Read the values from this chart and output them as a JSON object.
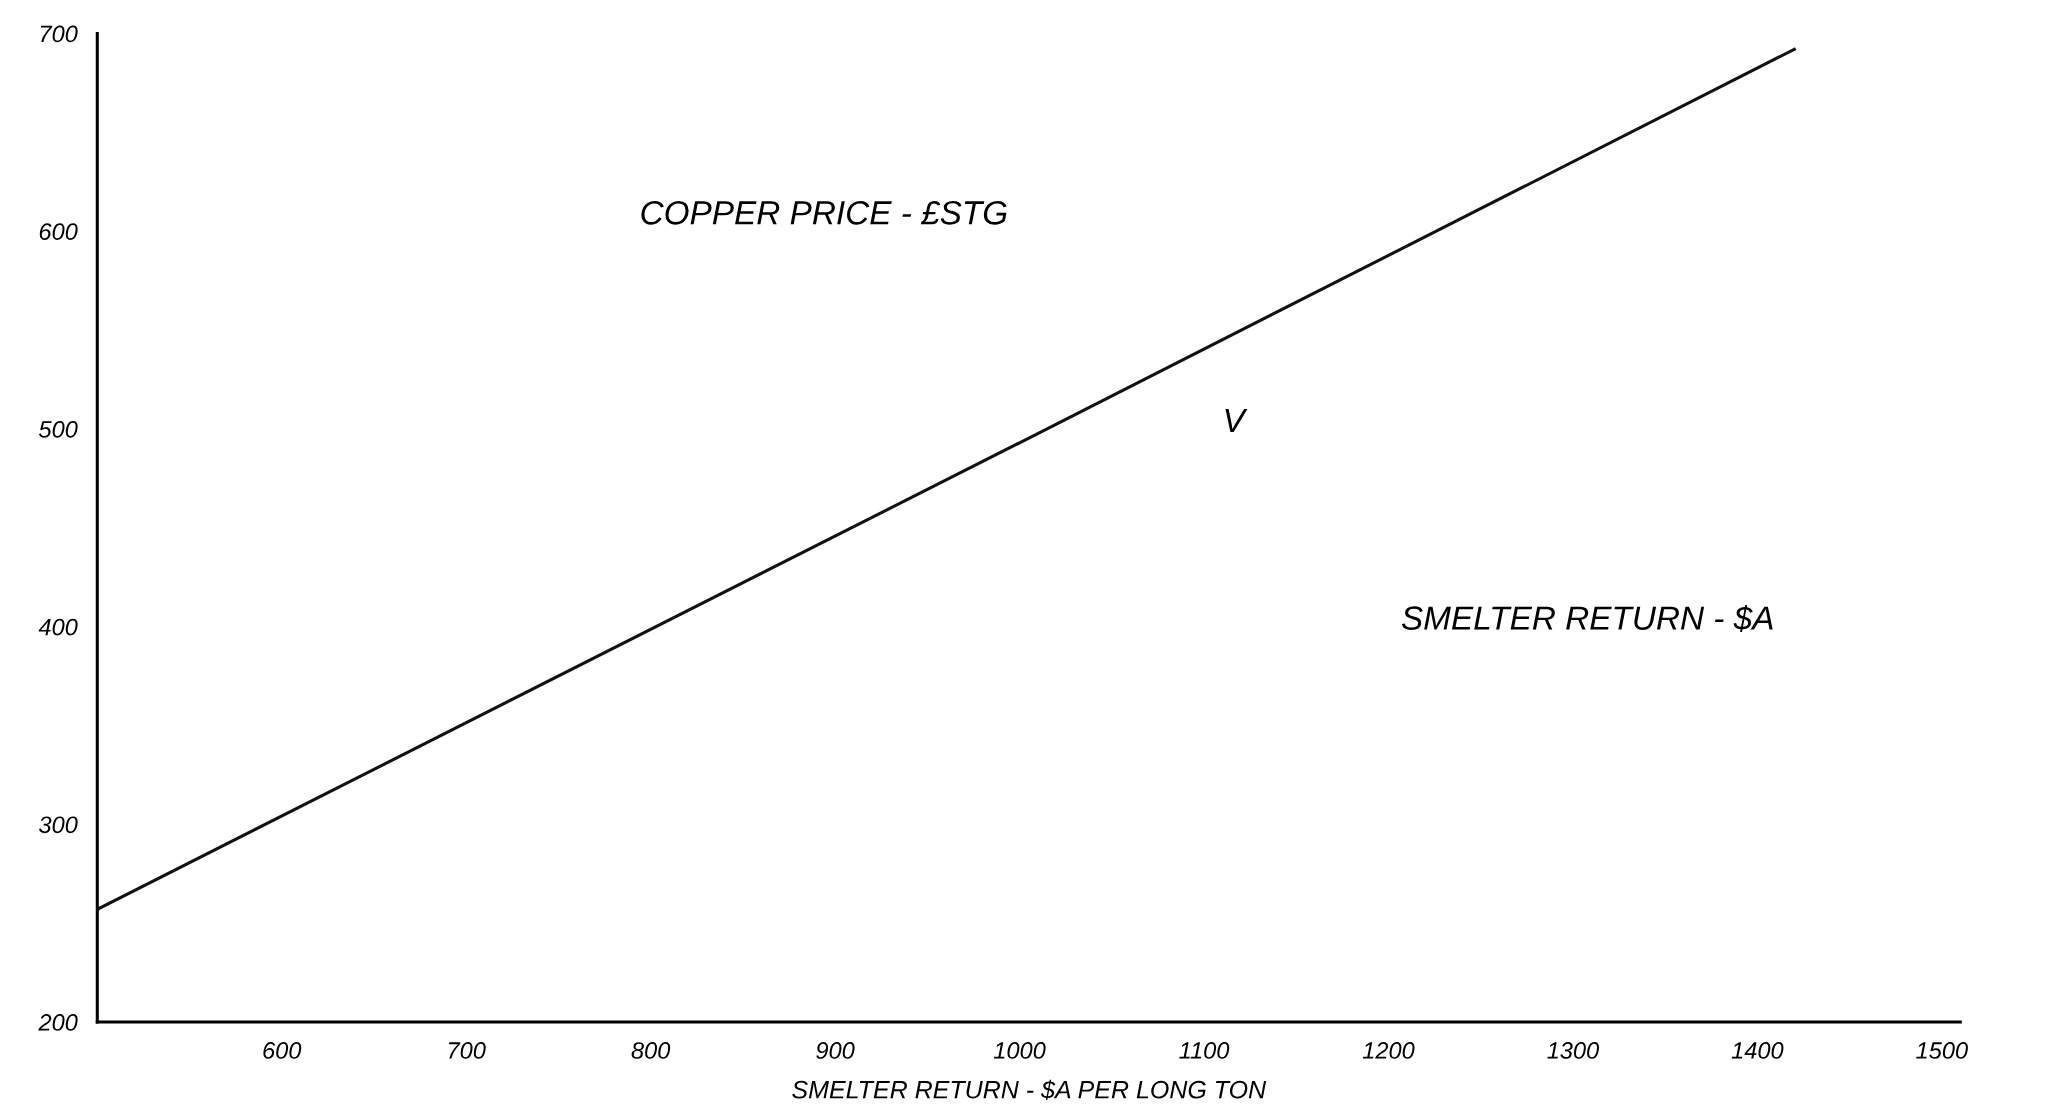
{
  "chart_data": {
    "type": "line",
    "xlabel": "SMELTER RETURN - $A PER LONG TON",
    "x": [
      500,
      1000,
      1420
    ],
    "series": [
      {
        "color": "#111111",
        "values": [
          257,
          493,
          692
        ]
      }
    ],
    "xlim": [
      500,
      1510
    ],
    "xticks": [
      600,
      700,
      800,
      900,
      1000,
      1100,
      1200,
      1300,
      1400,
      1500
    ],
    "ylim": [
      200,
      700
    ],
    "yticks": [
      200,
      300,
      400,
      500,
      600,
      700
    ],
    "grid": false,
    "legend": false,
    "marker": "none",
    "line_style": "solid",
    "annotations": [
      "COPPER PRICE - £STG",
      "V",
      "SMELTER RETURN - $A"
    ]
  }
}
